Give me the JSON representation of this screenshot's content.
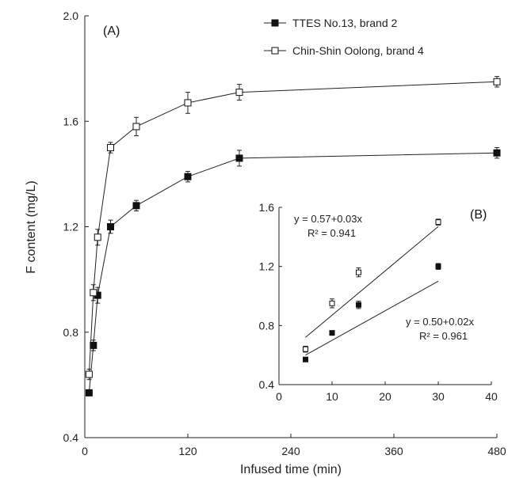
{
  "chart_data": [
    {
      "type": "line",
      "panel_label": "(A)",
      "xlabel": "Infused time (min)",
      "ylabel": "F content (mg/L)",
      "xlim": [
        0,
        480
      ],
      "ylim": [
        0.4,
        2.0
      ],
      "xticks": [
        "0",
        "120",
        "240",
        "360",
        "480"
      ],
      "yticks": [
        "0.4",
        "0.8",
        "1.2",
        "1.6",
        "2.0"
      ],
      "grid": false,
      "legend_position": "top-right",
      "series": [
        {
          "name": "TTES No.13, brand 2",
          "marker": "filled-square",
          "x": [
            5,
            10,
            15,
            30,
            60,
            120,
            180,
            480
          ],
          "y": [
            0.57,
            0.75,
            0.94,
            1.2,
            1.28,
            1.39,
            1.46,
            1.48
          ],
          "err": [
            0.01,
            0.02,
            0.03,
            0.025,
            0.02,
            0.02,
            0.03,
            0.02
          ]
        },
        {
          "name": "Chin-Shin Oolong, brand 4",
          "marker": "open-square",
          "x": [
            5,
            10,
            15,
            30,
            60,
            120,
            180,
            480
          ],
          "y": [
            0.64,
            0.95,
            1.16,
            1.5,
            1.58,
            1.67,
            1.71,
            1.75
          ],
          "err": [
            0.02,
            0.03,
            0.03,
            0.02,
            0.035,
            0.04,
            0.03,
            0.02
          ]
        }
      ]
    },
    {
      "type": "scatter",
      "panel_label": "(B)",
      "xlim": [
        0,
        40
      ],
      "ylim": [
        0.4,
        1.6
      ],
      "xticks": [
        "0",
        "10",
        "20",
        "30",
        "40"
      ],
      "yticks": [
        "0.4",
        "0.8",
        "1.2",
        "1.6"
      ],
      "series": [
        {
          "marker": "open-square",
          "x": [
            5,
            10,
            15,
            30
          ],
          "y": [
            0.64,
            0.95,
            1.16,
            1.5
          ],
          "err": [
            0.02,
            0.03,
            0.03,
            0.02
          ],
          "fit": {
            "intercept": 0.57,
            "slope": 0.03,
            "x_range": [
              5,
              30
            ]
          },
          "equation": "y = 0.57+0.03x",
          "r2_text": "R² = 0.941"
        },
        {
          "marker": "filled-square",
          "x": [
            5,
            10,
            15,
            30
          ],
          "y": [
            0.57,
            0.75,
            0.94,
            1.2
          ],
          "err": [
            0.01,
            0.01,
            0.025,
            0.02
          ],
          "fit": {
            "intercept": 0.5,
            "slope": 0.02,
            "x_range": [
              5,
              30
            ]
          },
          "equation": "y = 0.50+0.02x",
          "r2_text": "R² = 0.961"
        }
      ]
    }
  ]
}
